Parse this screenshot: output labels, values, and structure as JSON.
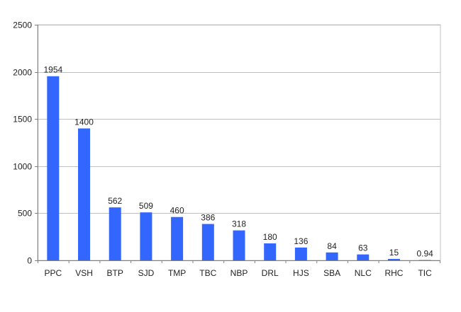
{
  "chart_data": {
    "type": "bar",
    "title": "",
    "xlabel": "",
    "ylabel": "",
    "categories": [
      "PPC",
      "VSH",
      "BTP",
      "SJD",
      "TMP",
      "TBC",
      "NBP",
      "DRL",
      "HJS",
      "SBA",
      "NLC",
      "RHC",
      "TIC"
    ],
    "values": [
      1954,
      1400,
      562,
      509,
      460,
      386,
      318,
      180,
      136,
      84,
      63,
      15,
      0.94
    ],
    "value_labels": [
      "1954",
      "1400",
      "562",
      "509",
      "460",
      "386",
      "318",
      "180",
      "136",
      "84",
      "63",
      "15",
      "0.94"
    ],
    "ylim": [
      0,
      2500
    ],
    "yticks": [
      0,
      500,
      1000,
      1500,
      2000,
      2500
    ],
    "ytick_labels": [
      "0",
      "500",
      "1000",
      "1500",
      "2000",
      "2500"
    ],
    "grid": true,
    "legend": "none",
    "bar_color": "#3366ff",
    "grid_color": "#c0c0c0",
    "axis_color": "#808080"
  }
}
